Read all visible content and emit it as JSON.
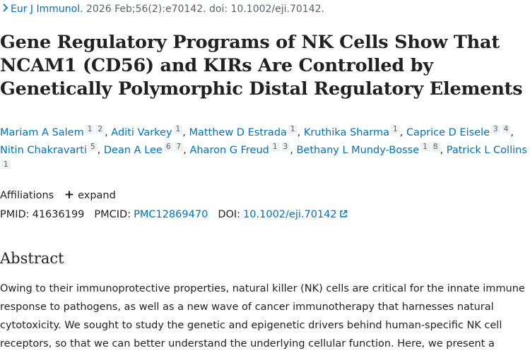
{
  "citation": {
    "journal": "Eur J Immunol.",
    "details": " 2026 Feb;56(2):e70142. doi: 10.1002/eji.70142."
  },
  "article": {
    "title": "Gene Regulatory Programs of NK Cells Show That NCAM1 (CD56) and KIRs Are Controlled by Genetically Polymorphic Distal Regulatory Elements"
  },
  "authors": [
    {
      "name": "Mariam A Salem",
      "affs": [
        "1",
        "2"
      ]
    },
    {
      "name": "Aditi Varkey",
      "affs": [
        "1"
      ]
    },
    {
      "name": "Matthew D Estrada",
      "affs": [
        "1"
      ]
    },
    {
      "name": "Kruthika Sharma",
      "affs": [
        "1"
      ]
    },
    {
      "name": "Caprice D Eisele",
      "affs": [
        "3",
        "4"
      ]
    },
    {
      "name": "Nitin Chakravarti",
      "affs": [
        "5"
      ]
    },
    {
      "name": "Dean A Lee",
      "affs": [
        "6",
        "7"
      ]
    },
    {
      "name": "Aharon G Freud",
      "affs": [
        "1",
        "3"
      ]
    },
    {
      "name": "Bethany L Mundy-Bosse",
      "affs": [
        "1",
        "8"
      ]
    },
    {
      "name": "Patrick L Collins",
      "affs": [
        "1"
      ]
    }
  ],
  "affiliations": {
    "label": "Affiliations",
    "expand_label": "expand"
  },
  "identifiers": {
    "pmid_label": "PMID:",
    "pmid": "41636199",
    "pmcid_label": "PMCID:",
    "pmcid": "PMC12869470",
    "doi_label": "DOI:",
    "doi": "10.1002/eji.70142"
  },
  "abstract": {
    "heading": "Abstract",
    "text": "Owing to their immunoprotective properties, natural killer (NK) cells are critical for the innate immune response to pathogens, as well as a new wave of cancer immunotherapy that harnesses natural cytotoxicity. We sought to study the genetic and epigenetic drivers behind human-specific NK cell receptors, so that we can better understand the underlying cellular function. Here, we present a"
  },
  "icons": {
    "back": "chevron-right-icon",
    "expand": "plus-icon",
    "external_link": "external-link-icon"
  },
  "colors": {
    "link": "#0071bc",
    "text": "#212121",
    "muted": "#5b616b",
    "badge_bg": "#eef0f2"
  }
}
